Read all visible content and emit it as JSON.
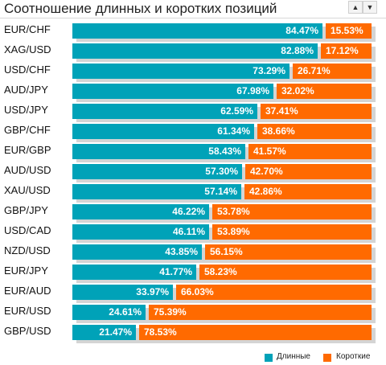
{
  "title": "Соотношение длинных и коротких позиций",
  "controls": {
    "up_icon": "▲",
    "down_icon": "▼"
  },
  "colors": {
    "long": "#00a2b8",
    "short": "#ff6a00",
    "shadow": "#d4d4d4"
  },
  "chart_data": {
    "type": "bar",
    "orientation": "horizontal",
    "stacked": true,
    "title": "Соотношение длинных и коротких позиций",
    "categories": [
      "EUR/CHF",
      "XAG/USD",
      "USD/CHF",
      "AUD/JPY",
      "USD/JPY",
      "GBP/CHF",
      "EUR/GBP",
      "AUD/USD",
      "XAU/USD",
      "GBP/JPY",
      "USD/CAD",
      "NZD/USD",
      "EUR/JPY",
      "EUR/AUD",
      "EUR/USD",
      "GBP/USD"
    ],
    "series": [
      {
        "name": "Длинные",
        "color": "#00a2b8",
        "values": [
          84.47,
          82.88,
          73.29,
          67.98,
          62.59,
          61.34,
          58.43,
          57.3,
          57.14,
          46.22,
          46.11,
          43.85,
          41.77,
          33.97,
          24.61,
          21.47
        ],
        "labels": [
          "84.47%",
          "82.88%",
          "73.29%",
          "67.98%",
          "62.59%",
          "61.34%",
          "58.43%",
          "57.30%",
          "57.14%",
          "46.22%",
          "46.11%",
          "43.85%",
          "41.77%",
          "33.97%",
          "24.61%",
          "21.47%"
        ]
      },
      {
        "name": "Короткие",
        "color": "#ff6a00",
        "values": [
          15.53,
          17.12,
          26.71,
          32.02,
          37.41,
          38.66,
          41.57,
          42.7,
          42.86,
          53.78,
          53.89,
          56.15,
          58.23,
          66.03,
          75.39,
          78.53
        ],
        "labels": [
          "15.53%",
          "17.12%",
          "26.71%",
          "32.02%",
          "37.41%",
          "38.66%",
          "41.57%",
          "42.70%",
          "42.86%",
          "53.78%",
          "53.89%",
          "56.15%",
          "58.23%",
          "66.03%",
          "75.39%",
          "78.53%"
        ]
      }
    ],
    "xlim": [
      0,
      100
    ],
    "legend": "bottom-right",
    "grid": false
  }
}
